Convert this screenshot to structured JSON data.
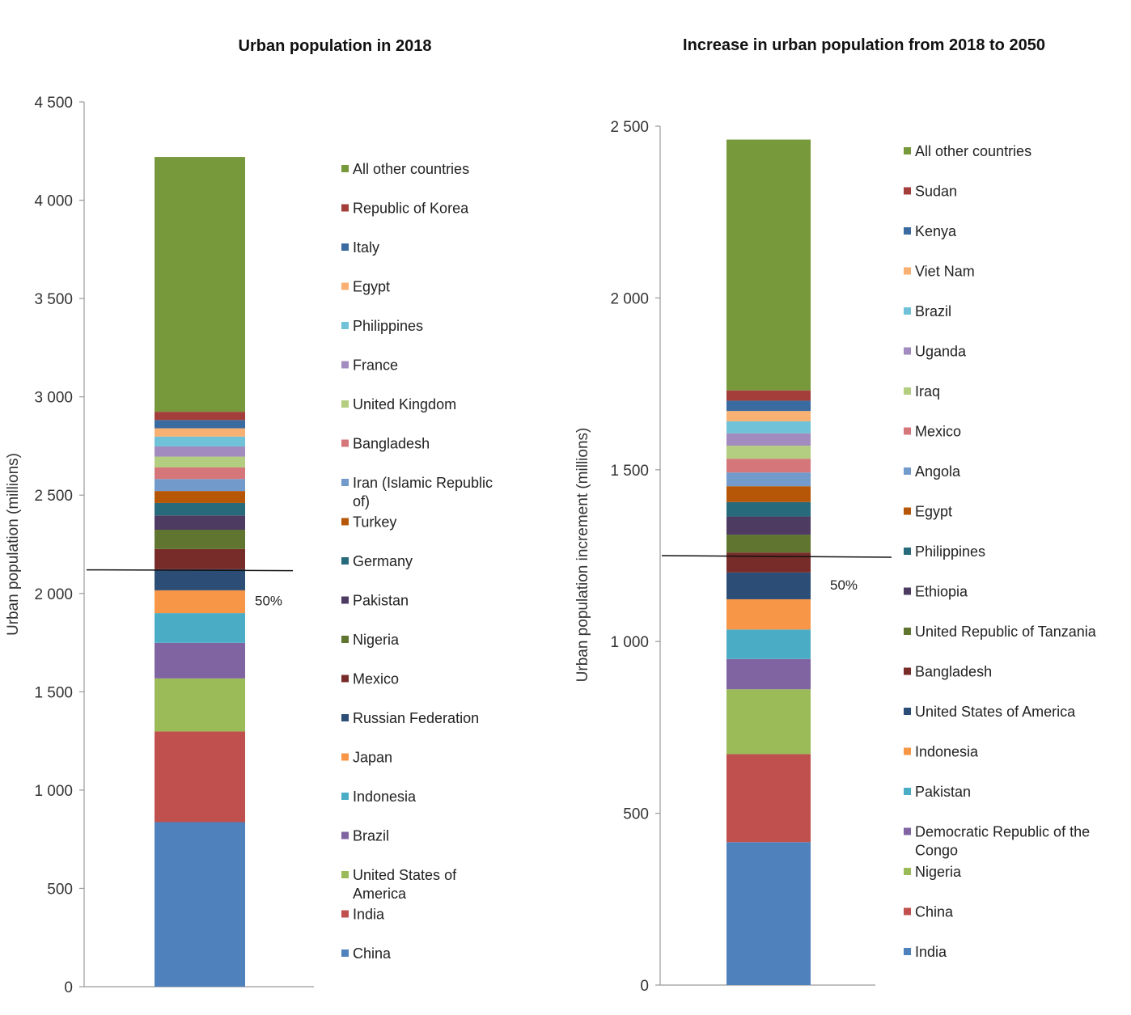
{
  "chart_data": [
    {
      "type": "bar",
      "stacked": true,
      "title": "Urban population in 2018",
      "ylabel": "Urban population (millions)",
      "ylim": [
        0,
        4500
      ],
      "yticks": [
        "0",
        "500",
        "1 000",
        "1 500",
        "2 000",
        "2 500",
        "3 000",
        "3 500",
        "4 000",
        "4 500"
      ],
      "ytick_values": [
        0,
        500,
        1000,
        1500,
        2000,
        2500,
        3000,
        3500,
        4000,
        4500
      ],
      "series": [
        {
          "name": "China",
          "value": 837,
          "color": "#4f81bd"
        },
        {
          "name": "India",
          "value": 461,
          "color": "#c0504d"
        },
        {
          "name": "United States of America",
          "value": 270,
          "color": "#9bbb59"
        },
        {
          "name": "Brazil",
          "value": 181,
          "color": "#8064a2"
        },
        {
          "name": "Indonesia",
          "value": 151,
          "color": "#4bacc6"
        },
        {
          "name": "Japan",
          "value": 116,
          "color": "#f79646"
        },
        {
          "name": "Russian Federation",
          "value": 107,
          "color": "#2c4d75"
        },
        {
          "name": "Mexico",
          "value": 103,
          "color": "#772c2a"
        },
        {
          "name": "Nigeria",
          "value": 98,
          "color": "#5f7530"
        },
        {
          "name": "Pakistan",
          "value": 73,
          "color": "#4d3b62"
        },
        {
          "name": "Germany",
          "value": 63,
          "color": "#276a7c"
        },
        {
          "name": "Turkey",
          "value": 61,
          "color": "#b65708"
        },
        {
          "name": "Iran (Islamic Republic of)",
          "value": 61,
          "color": "#729aca"
        },
        {
          "name": "Bangladesh",
          "value": 59,
          "color": "#d5777a"
        },
        {
          "name": "United Kingdom",
          "value": 55,
          "color": "#b3cd81"
        },
        {
          "name": "France",
          "value": 52,
          "color": "#a28bbe"
        },
        {
          "name": "Philippines",
          "value": 50,
          "color": "#6fc2d7"
        },
        {
          "name": "Egypt",
          "value": 42,
          "color": "#f9b073"
        },
        {
          "name": "Italy",
          "value": 42,
          "color": "#3a6ba0"
        },
        {
          "name": "Republic of Korea",
          "value": 42,
          "color": "#a33e3b"
        },
        {
          "name": "All other countries",
          "value": 1296,
          "color": "#77993c"
        }
      ],
      "annotation": {
        "label": "50%",
        "value": 2120
      }
    },
    {
      "type": "bar",
      "stacked": true,
      "title": "Increase in urban population from 2018 to 2050",
      "ylabel": "Urban population increment (millions)",
      "ylim": [
        0,
        2500
      ],
      "yticks": [
        "0",
        "500",
        "1 000",
        "1 500",
        "2 000",
        "2 500"
      ],
      "ytick_values": [
        0,
        500,
        1000,
        1500,
        2000,
        2500
      ],
      "series": [
        {
          "name": "India",
          "value": 416,
          "color": "#4f81bd"
        },
        {
          "name": "China",
          "value": 256,
          "color": "#c0504d"
        },
        {
          "name": "Nigeria",
          "value": 189,
          "color": "#9bbb59"
        },
        {
          "name": "Democratic Republic of the Congo",
          "value": 88,
          "color": "#8064a2"
        },
        {
          "name": "Pakistan",
          "value": 86,
          "color": "#4bacc6"
        },
        {
          "name": "Indonesia",
          "value": 88,
          "color": "#f79646"
        },
        {
          "name": "United States of America",
          "value": 78,
          "color": "#2c4d75"
        },
        {
          "name": "Bangladesh",
          "value": 58,
          "color": "#772c2a"
        },
        {
          "name": "United Republic of Tanzania",
          "value": 52,
          "color": "#5f7530"
        },
        {
          "name": "Ethiopia",
          "value": 53,
          "color": "#4d3b62"
        },
        {
          "name": "Philippines",
          "value": 42,
          "color": "#276a7c"
        },
        {
          "name": "Egypt",
          "value": 46,
          "color": "#b65708"
        },
        {
          "name": "Angola",
          "value": 40,
          "color": "#729aca"
        },
        {
          "name": "Mexico",
          "value": 40,
          "color": "#d5777a"
        },
        {
          "name": "Iraq",
          "value": 38,
          "color": "#b3cd81"
        },
        {
          "name": "Uganda",
          "value": 36,
          "color": "#a28bbe"
        },
        {
          "name": "Brazil",
          "value": 35,
          "color": "#6fc2d7"
        },
        {
          "name": "Viet Nam",
          "value": 30,
          "color": "#f9b073"
        },
        {
          "name": "Kenya",
          "value": 30,
          "color": "#3a6ba0"
        },
        {
          "name": "Sudan",
          "value": 30,
          "color": "#a33e3b"
        },
        {
          "name": "All other countries",
          "value": 730,
          "color": "#77993c"
        }
      ],
      "annotation": {
        "label": "50%",
        "value": 1250
      }
    }
  ]
}
